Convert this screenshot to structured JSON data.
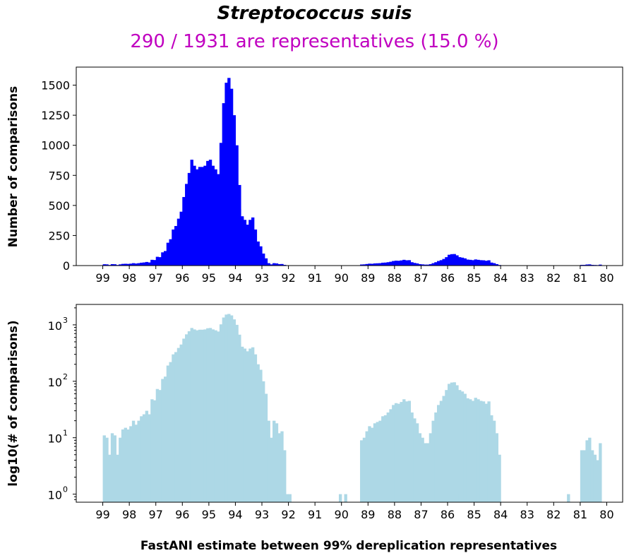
{
  "title": "Streptococcus suis",
  "subtitle": "290 / 1931 are representatives (15.0 %)",
  "colors": {
    "top": "#0000ff",
    "bottom": "#add8e6",
    "subtitle": "#c000c0"
  },
  "xlabel": "FastANI estimate between 99% dereplication representatives",
  "chart_data": [
    {
      "type": "bar",
      "panel": "top",
      "ylabel": "Number of comparisons",
      "xlim": [
        100,
        79.4
      ],
      "ylim": [
        0,
        1650
      ],
      "yticks": [
        0,
        250,
        500,
        750,
        1000,
        1250,
        1500
      ],
      "xticks": [
        99,
        98,
        97,
        96,
        95,
        94,
        93,
        92,
        91,
        90,
        89,
        88,
        87,
        86,
        85,
        84,
        83,
        82,
        81,
        80
      ],
      "bin_width": 0.1,
      "bin_starts": [
        99.0,
        95.0,
        89.3,
        85.7,
        81.0
      ],
      "segments": [
        [
          11,
          10,
          5,
          12,
          11,
          5,
          10,
          14,
          15,
          14,
          16,
          20,
          17,
          20,
          24,
          26,
          30,
          26,
          48,
          46,
          73,
          70,
          110,
          121,
          190,
          219,
          300,
          329,
          390,
          448,
          570,
          679,
          770,
          880,
          830,
          800,
          820,
          820,
          830,
          870,
          880,
          830,
          800,
          760,
          700,
          660,
          630,
          580,
          560,
          540,
          500,
          470,
          410
        ],
        [
          470,
          520,
          630,
          760,
          1020,
          1350,
          1520,
          1560,
          1470,
          1250,
          1000,
          670,
          400,
          380,
          340,
          380,
          400,
          300,
          200,
          160,
          100,
          60,
          20,
          10,
          20,
          18,
          12,
          13,
          6,
          1,
          1
        ],
        [
          9,
          10,
          13,
          16,
          15,
          18,
          19,
          20,
          24,
          25,
          28,
          32,
          38,
          41,
          40,
          43,
          48,
          44,
          45,
          28,
          22,
          18,
          12,
          10,
          8,
          8,
          12,
          20,
          28,
          38,
          45,
          55,
          70,
          90,
          95,
          96,
          85,
          70,
          66,
          60,
          50,
          48,
          45,
          51,
          48,
          45,
          44,
          40,
          44,
          25,
          20,
          12,
          5
        ],
        [
          1,
          1,
          1,
          1,
          1,
          1,
          1,
          1
        ],
        [
          6,
          6,
          9,
          10,
          6,
          5,
          4,
          8
        ]
      ]
    },
    {
      "type": "bar",
      "panel": "bottom",
      "ylabel": "log10(# of comparisons)",
      "scale": "log",
      "xlim": [
        100,
        79.4
      ],
      "ylim": [
        0.72,
        2300
      ],
      "ytick_labels": [
        "10",
        "10",
        "10",
        "10"
      ],
      "ytick_exponents": [
        "0",
        "1",
        "2",
        "3"
      ],
      "xticks": [
        99,
        98,
        97,
        96,
        95,
        94,
        93,
        92,
        91,
        90,
        89,
        88,
        87,
        86,
        85,
        84,
        83,
        82,
        81,
        80
      ],
      "bin_width": 0.1,
      "bin_starts": [
        99.0,
        95.0,
        92.4,
        90.1,
        89.3,
        85.7,
        85.4,
        85.1,
        84.8,
        81.5,
        81.0
      ],
      "segments": [
        [
          11,
          10,
          5,
          12,
          11,
          5,
          10,
          14,
          15,
          14,
          16,
          20,
          17,
          20,
          24,
          26,
          30,
          26,
          48,
          46,
          73,
          70,
          110,
          121,
          190,
          219,
          300,
          329,
          390,
          448,
          570,
          679,
          770,
          880,
          830,
          800,
          820,
          820,
          830,
          870,
          880,
          830,
          800,
          760,
          700,
          660,
          630,
          580,
          560,
          540,
          500,
          470,
          410
        ],
        [
          470,
          520,
          630,
          760,
          1020,
          1350,
          1520,
          1560,
          1470,
          1250,
          1000,
          670,
          400,
          380,
          340,
          380,
          400,
          300,
          200,
          160,
          100,
          60,
          20,
          10,
          20,
          18,
          12,
          13,
          6,
          1,
          1
        ],
        [
          1
        ],
        [
          1,
          0,
          1
        ],
        [
          9,
          10,
          13,
          16,
          15,
          18,
          19,
          20,
          24,
          25,
          28,
          32,
          38,
          41,
          40,
          43,
          48,
          44,
          45,
          28,
          22,
          18,
          12,
          10,
          8,
          8,
          12,
          20,
          28,
          38,
          45,
          55,
          70,
          90,
          95,
          96,
          85,
          70,
          66,
          60,
          50,
          48,
          45,
          51,
          48,
          45,
          44,
          40,
          44,
          25,
          20,
          12,
          5
        ],
        [
          1
        ],
        [
          1
        ],
        [
          1
        ],
        [
          1,
          1,
          1
        ],
        [
          1
        ],
        [
          6,
          6,
          9,
          10,
          6,
          5,
          4,
          8
        ]
      ]
    }
  ]
}
